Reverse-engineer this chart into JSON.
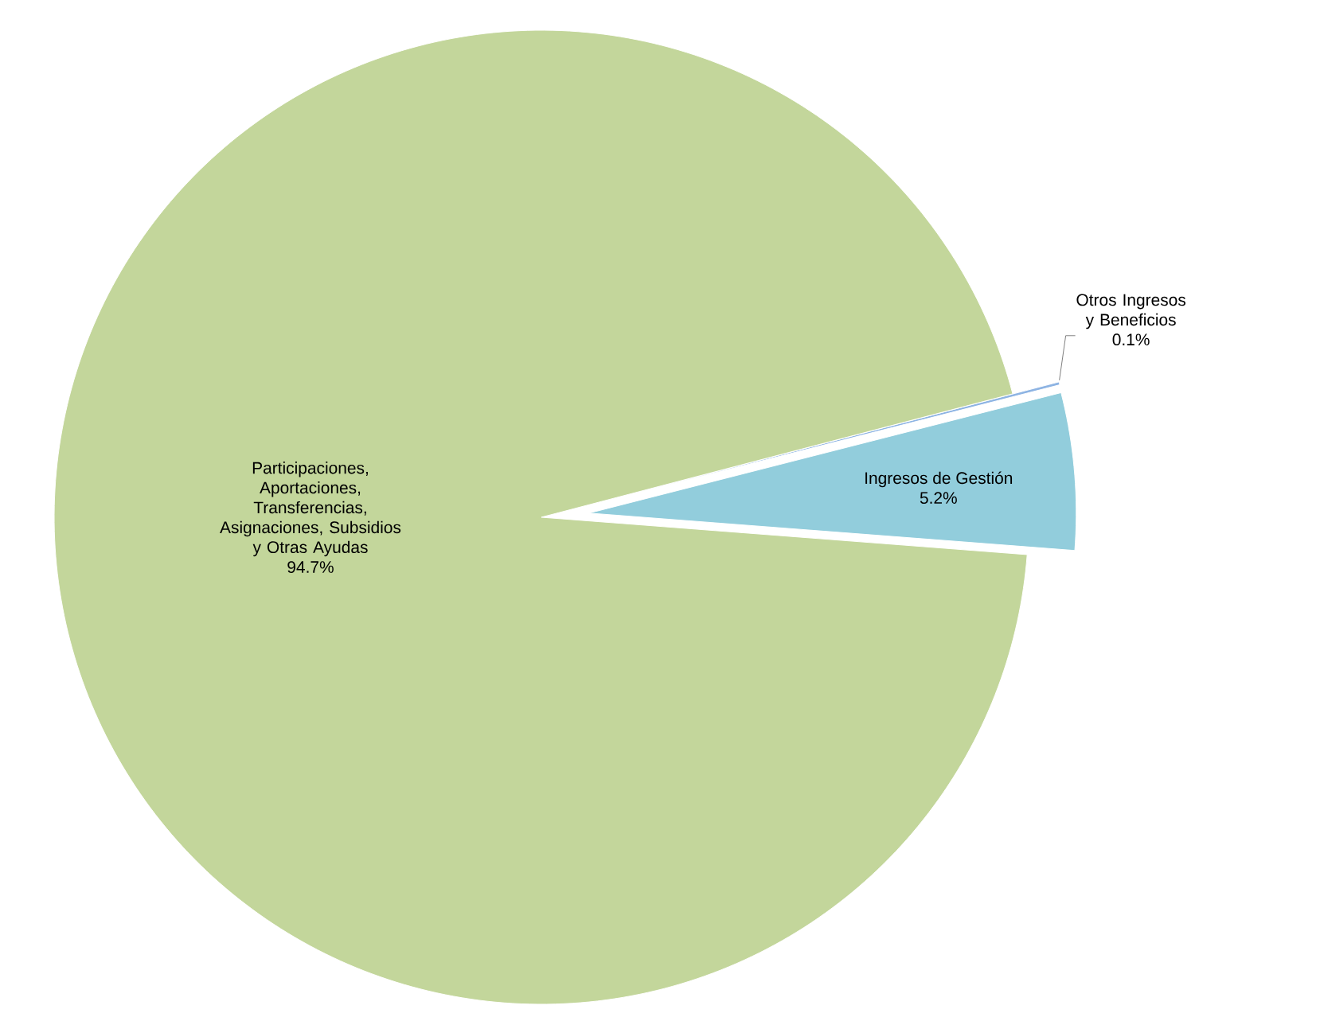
{
  "chart_data": {
    "type": "pie",
    "categories": [
      "Ingresos de Gestión",
      "Otros Ingresos y Beneficios",
      "Participaciones, Aportaciones, Transferencias, Asignaciones, Subsidios y Otras Ayudas"
    ],
    "values": [
      5.2,
      0.1,
      94.7
    ],
    "value_labels": [
      "5.2%",
      "0.1%",
      "94.7%"
    ],
    "colors": [
      "#92cddc",
      "#8eb4e3",
      "#c3d69b"
    ]
  }
}
